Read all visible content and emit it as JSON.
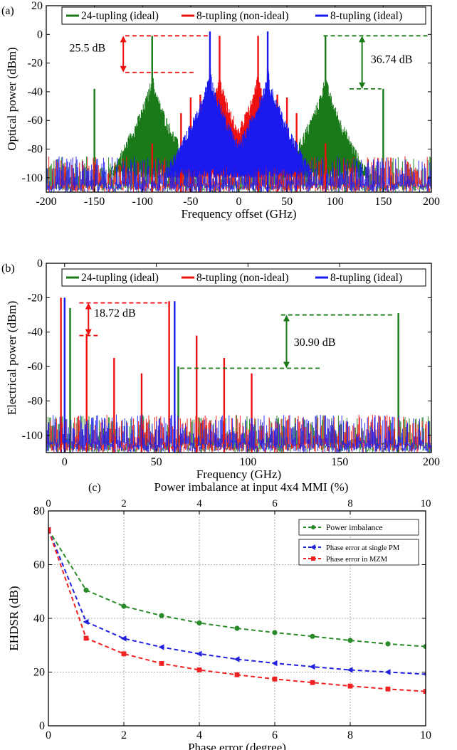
{
  "chart_data": [
    {
      "panel": "(a)",
      "type": "line",
      "xlabel": "Frequency offset (GHz)",
      "ylabel": "Optical power (dBm)",
      "xlim": [
        -200,
        200
      ],
      "ylim": [
        -110,
        20
      ],
      "xticks": [
        -200,
        -150,
        -100,
        -50,
        0,
        50,
        100,
        150,
        200
      ],
      "yticks": [
        20,
        0,
        -20,
        -40,
        -60,
        -80,
        -100
      ],
      "grid": false,
      "legend": "top",
      "noise_floor": [
        -110,
        -85
      ],
      "series": [
        {
          "name": "24-tupling (ideal)",
          "color": "#1a7a1a",
          "x": [
            -150,
            -90,
            90,
            150
          ],
          "y": [
            -38,
            -1,
            -1,
            -38
          ]
        },
        {
          "name": "8-tupling (non-ideal)",
          "color": "#ee1111",
          "x": [
            -90,
            -60,
            -50,
            -40,
            -30,
            -20,
            20,
            30,
            40,
            50,
            60,
            90
          ],
          "y": [
            -76,
            -55,
            -44,
            -42,
            -24,
            -1,
            -1,
            -24,
            -42,
            -44,
            -55,
            -76
          ]
        },
        {
          "name": "8-tupling (ideal)",
          "color": "#1a1aee",
          "x": [
            -30,
            30
          ],
          "y": [
            2,
            2
          ]
        }
      ],
      "annotations": [
        {
          "text": "25.5 dB",
          "color": "#ee1111",
          "from": -1,
          "to": -26.5
        },
        {
          "text": "36.74 dB",
          "color": "#1a7a1a",
          "from": -1,
          "to": -38
        }
      ]
    },
    {
      "panel": "(b)",
      "type": "line",
      "xlabel": "Frequency (GHz)",
      "ylabel": "Electrical power (dBm)",
      "xlim": [
        -10,
        200
      ],
      "ylim": [
        -110,
        0
      ],
      "xticks": [
        0,
        50,
        100,
        150,
        200
      ],
      "yticks": [
        0,
        -20,
        -40,
        -60,
        -80,
        -100
      ],
      "grid": false,
      "legend": "top",
      "noise_floor": [
        -110,
        -88
      ],
      "series": [
        {
          "name": "24-tupling (ideal)",
          "color": "#1a7a1a",
          "x": [
            3,
            62,
            182
          ],
          "y": [
            -26,
            -60,
            -29
          ]
        },
        {
          "name": "8-tupling (non-ideal)",
          "color": "#ee1111",
          "x": [
            -2,
            12,
            27,
            42,
            57,
            72,
            87,
            102
          ],
          "y": [
            -20,
            -41,
            -55,
            -64,
            -22,
            -42,
            -55,
            -64
          ]
        },
        {
          "name": "8-tupling (ideal)",
          "color": "#1a1aee",
          "x": [
            0,
            60
          ],
          "y": [
            -20,
            -22
          ]
        }
      ],
      "annotations": [
        {
          "text": "18.72 dB",
          "color": "#ee1111",
          "from": -23,
          "to": -42
        },
        {
          "text": "30.90 dB",
          "color": "#1a7a1a",
          "from": -30,
          "to": -61
        }
      ]
    },
    {
      "panel": "(c)",
      "type": "line",
      "xlabel": "Phase error (degree)",
      "ylabel": "EHDSR (dB)",
      "x2label": "Power imbalance at input 4x4 MMI (%)",
      "xlim": [
        0,
        10
      ],
      "ylim": [
        0,
        80
      ],
      "xticks": [
        0,
        2,
        4,
        6,
        8,
        10
      ],
      "yticks": [
        0,
        20,
        40,
        60,
        80
      ],
      "grid": true,
      "legend": "top-right",
      "x": [
        0,
        1,
        2,
        3,
        4,
        5,
        6,
        7,
        8,
        9,
        10
      ],
      "series": [
        {
          "name": "Power imbalance",
          "color": "#2a8a2a",
          "marker": "circle",
          "values": [
            73,
            50.5,
            44.5,
            41,
            38.3,
            36.3,
            34.7,
            33.3,
            31.8,
            30.5,
            29.5
          ]
        },
        {
          "name": "Phase error at single PM",
          "color": "#2222dd",
          "marker": "triangle-left",
          "values": [
            73,
            38.7,
            32.5,
            29.3,
            26.8,
            24.8,
            23.3,
            22,
            20.8,
            20,
            19.2
          ]
        },
        {
          "name": "Phase error in MZM",
          "color": "#ee2222",
          "marker": "square",
          "values": [
            73,
            32.6,
            26.8,
            23.2,
            20.8,
            19,
            17.4,
            16.1,
            14.8,
            13.7,
            12.8
          ]
        }
      ]
    }
  ]
}
